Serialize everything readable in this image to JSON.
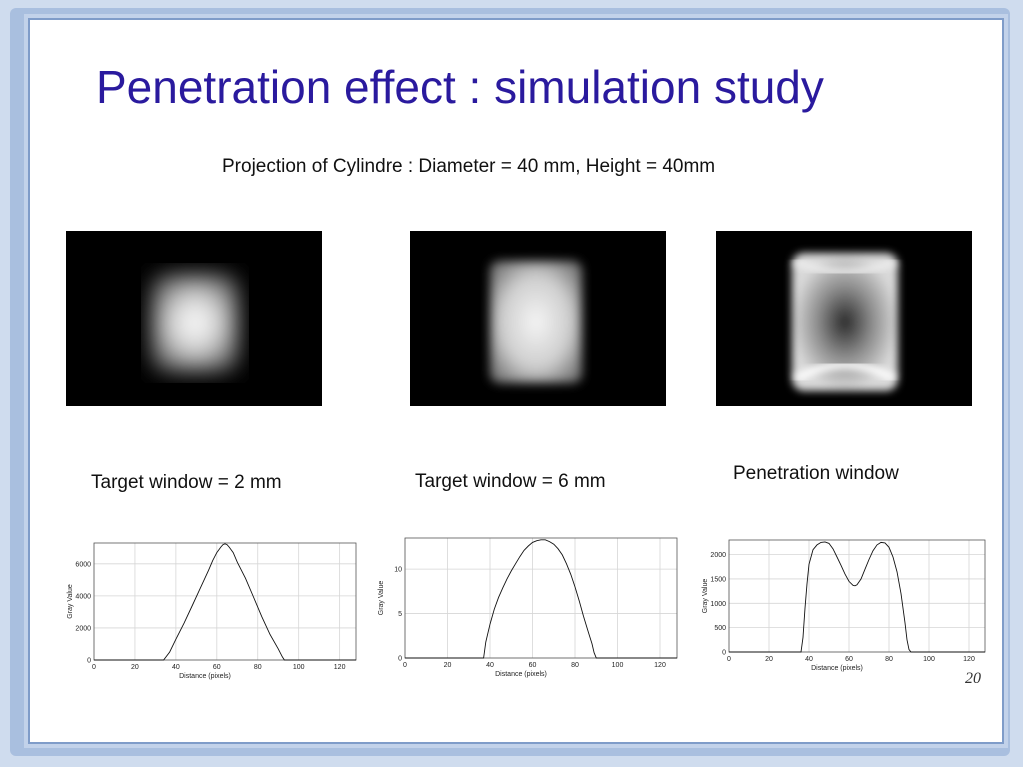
{
  "slide": {
    "title": "Penetration effect : simulation study",
    "subtitle": "Projection of Cylindre : Diameter = 40 mm, Height = 40mm",
    "page_number": "20"
  },
  "panels": [
    {
      "caption": "Target window = 2 mm",
      "image": "blurred bright cylinder projection"
    },
    {
      "caption": "Target window = 6 mm",
      "image": "sharper bright cylinder projection"
    },
    {
      "caption": "Penetration window",
      "image": "cylinder projection with bright rim and dark center"
    }
  ],
  "chart_data": [
    {
      "type": "line",
      "xlabel": "Distance (pixels)",
      "ylabel": "Gray Value",
      "xlim": [
        0,
        128
      ],
      "ylim": [
        0,
        7300
      ],
      "xticks": [
        "0",
        "20",
        "40",
        "60",
        "80",
        "100",
        "120"
      ],
      "yticks": [
        "0",
        "2000",
        "4000",
        "6000"
      ],
      "ytick_values": [
        0,
        2000,
        4000,
        6000
      ],
      "x": [
        0,
        34,
        37,
        40,
        44,
        48,
        52,
        56,
        58,
        60,
        62,
        63,
        64,
        65,
        66,
        68,
        70,
        74,
        78,
        82,
        86,
        90,
        92,
        93,
        128
      ],
      "y": [
        0,
        0,
        500,
        1300,
        2300,
        3400,
        4500,
        5600,
        6200,
        6700,
        7050,
        7200,
        7250,
        7200,
        7050,
        6700,
        6100,
        5100,
        3900,
        2700,
        1600,
        700,
        200,
        0,
        0
      ],
      "grid": true
    },
    {
      "type": "line",
      "xlabel": "Distance (pixels)",
      "ylabel": "Gray Value",
      "xlim": [
        0,
        128
      ],
      "ylim": [
        0,
        13.5
      ],
      "xticks": [
        "0",
        "20",
        "40",
        "60",
        "80",
        "100",
        "120"
      ],
      "yticks": [
        "0",
        "5",
        "10"
      ],
      "ytick_values": [
        0,
        5,
        10
      ],
      "x": [
        0,
        37,
        38,
        40,
        42,
        44,
        46,
        48,
        50,
        52,
        54,
        56,
        58,
        60,
        62,
        64,
        66,
        68,
        70,
        72,
        74,
        76,
        78,
        80,
        82,
        84,
        86,
        88,
        89,
        90,
        128
      ],
      "y": [
        0,
        0,
        1.8,
        3.8,
        5.5,
        6.8,
        7.9,
        8.9,
        9.8,
        10.6,
        11.4,
        12.1,
        12.6,
        13.0,
        13.2,
        13.3,
        13.3,
        13.1,
        12.8,
        12.3,
        11.6,
        10.6,
        9.4,
        8.0,
        6.4,
        4.7,
        3.1,
        1.6,
        0.6,
        0,
        0
      ],
      "grid": true
    },
    {
      "type": "line",
      "xlabel": "Distance (pixels)",
      "ylabel": "Gray Value",
      "xlim": [
        0,
        128
      ],
      "ylim": [
        0,
        2300
      ],
      "xticks": [
        "0",
        "20",
        "40",
        "60",
        "80",
        "100",
        "120"
      ],
      "yticks": [
        "0",
        "500",
        "1000",
        "1500",
        "2000"
      ],
      "ytick_values": [
        0,
        500,
        1000,
        1500,
        2000
      ],
      "x": [
        0,
        36,
        37,
        38,
        39,
        40,
        42,
        44,
        46,
        48,
        50,
        52,
        54,
        56,
        58,
        60,
        62,
        63,
        64,
        66,
        68,
        70,
        72,
        74,
        76,
        78,
        80,
        82,
        84,
        86,
        88,
        89,
        90,
        91,
        128
      ],
      "y": [
        0,
        0,
        300,
        900,
        1400,
        1800,
        2100,
        2200,
        2250,
        2260,
        2230,
        2120,
        1950,
        1780,
        1600,
        1450,
        1370,
        1360,
        1380,
        1500,
        1700,
        1900,
        2080,
        2200,
        2250,
        2240,
        2150,
        1950,
        1650,
        1200,
        600,
        250,
        50,
        0,
        0
      ],
      "grid": true
    }
  ]
}
